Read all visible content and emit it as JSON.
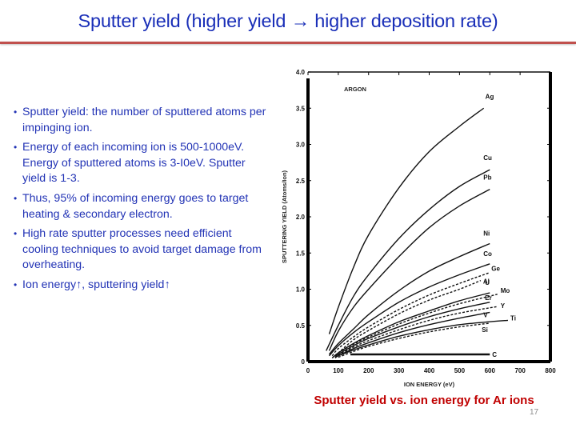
{
  "slide": {
    "title": "Sputter yield (higher yield → higher deposition rate)",
    "accent_color": "#c0504d",
    "title_color": "#1a2fb8",
    "page_number": "17"
  },
  "bullets": [
    {
      "text": "Sputter yield: the number of sputtered atoms per impinging ion."
    },
    {
      "text": "Energy of each incoming ion is 500-1000eV. Energy of sputtered atoms is 3-I0eV. Sputter yield is 1-3."
    },
    {
      "text": "Thus, 95% of incoming energy goes to target heating & secondary electron."
    },
    {
      "text": "High rate sputter processes need efficient cooling techniques to avoid target damage from overheating."
    },
    {
      "text": "Ion energy↑, sputtering yield↑"
    }
  ],
  "figure": {
    "caption": "Sputter yield vs. ion energy for Ar ions",
    "caption_color": "#c00000"
  },
  "chart_data": {
    "type": "line",
    "title": "ARGON",
    "xlabel": "ION ENERGY (eV)",
    "ylabel": "SPUTTERING YIELD (Atoms/Ion)",
    "xlim": [
      0,
      800
    ],
    "ylim": [
      0,
      4.0
    ],
    "xticks": [
      "0",
      "100",
      "200",
      "300",
      "400",
      "500",
      "600",
      "700",
      "800"
    ],
    "yticks": [
      "0",
      "0.5",
      "1.0",
      "1.5",
      "2.0",
      "2.5",
      "3.0",
      "3.5",
      "4.0"
    ],
    "grid": false,
    "legend": "inline labels at curve ends",
    "series": [
      {
        "name": "Ag",
        "style": "solid",
        "x": [
          70,
          100,
          150,
          200,
          300,
          400,
          500,
          580
        ],
        "y": [
          0.38,
          0.75,
          1.3,
          1.75,
          2.4,
          2.9,
          3.25,
          3.5
        ]
      },
      {
        "name": "Cu",
        "style": "solid",
        "x": [
          60,
          100,
          150,
          200,
          300,
          400,
          500,
          600
        ],
        "y": [
          0.15,
          0.5,
          0.9,
          1.2,
          1.7,
          2.1,
          2.42,
          2.65
        ]
      },
      {
        "name": "Pb",
        "style": "solid",
        "x": [
          70,
          100,
          150,
          200,
          300,
          400,
          500,
          600
        ],
        "y": [
          0.15,
          0.42,
          0.75,
          1.0,
          1.45,
          1.85,
          2.15,
          2.38
        ]
      },
      {
        "name": "Ni",
        "style": "solid",
        "x": [
          70,
          100,
          150,
          200,
          300,
          400,
          500,
          600
        ],
        "y": [
          0.1,
          0.25,
          0.45,
          0.65,
          0.98,
          1.25,
          1.45,
          1.63
        ]
      },
      {
        "name": "Co",
        "style": "solid",
        "x": [
          70,
          100,
          150,
          200,
          300,
          400,
          500,
          600
        ],
        "y": [
          0.08,
          0.22,
          0.4,
          0.55,
          0.82,
          1.03,
          1.2,
          1.35
        ]
      },
      {
        "name": "Ge",
        "style": "dashed",
        "x": [
          80,
          100,
          150,
          200,
          300,
          400,
          500,
          600
        ],
        "y": [
          0.08,
          0.18,
          0.34,
          0.48,
          0.72,
          0.92,
          1.08,
          1.23
        ]
      },
      {
        "name": "Al",
        "style": "dashed",
        "x": [
          90,
          100,
          150,
          200,
          300,
          400,
          500,
          570
        ],
        "y": [
          0.08,
          0.12,
          0.3,
          0.43,
          0.66,
          0.85,
          1.0,
          1.12
        ]
      },
      {
        "name": "U",
        "style": "solid",
        "x": [
          80,
          100,
          150,
          200,
          300,
          400,
          500,
          600
        ],
        "y": [
          0.05,
          0.12,
          0.25,
          0.36,
          0.55,
          0.7,
          0.84,
          0.95
        ]
      },
      {
        "name": "Mo",
        "style": "dashed",
        "x": [
          80,
          100,
          150,
          200,
          300,
          400,
          500,
          625
        ],
        "y": [
          0.05,
          0.12,
          0.24,
          0.34,
          0.52,
          0.67,
          0.8,
          0.93
        ]
      },
      {
        "name": "Er",
        "style": "solid",
        "x": [
          90,
          100,
          150,
          200,
          300,
          400,
          500,
          600
        ],
        "y": [
          0.06,
          0.1,
          0.22,
          0.32,
          0.48,
          0.62,
          0.73,
          0.82
        ]
      },
      {
        "name": "Y",
        "style": "dashed",
        "x": [
          90,
          100,
          150,
          200,
          300,
          400,
          500,
          625
        ],
        "y": [
          0.05,
          0.09,
          0.2,
          0.29,
          0.44,
          0.57,
          0.67,
          0.76
        ]
      },
      {
        "name": "V",
        "style": "solid",
        "x": [
          90,
          100,
          150,
          200,
          300,
          400,
          500,
          600
        ],
        "y": [
          0.05,
          0.08,
          0.18,
          0.26,
          0.4,
          0.51,
          0.6,
          0.68
        ]
      },
      {
        "name": "Ti",
        "style": "solid",
        "x": [
          100,
          150,
          200,
          300,
          400,
          500,
          600,
          660
        ],
        "y": [
          0.08,
          0.16,
          0.23,
          0.35,
          0.44,
          0.51,
          0.55,
          0.57
        ]
      },
      {
        "name": "Si",
        "style": "dashed",
        "x": [
          100,
          150,
          200,
          300,
          400,
          500,
          600
        ],
        "y": [
          0.06,
          0.14,
          0.21,
          0.32,
          0.41,
          0.48,
          0.53
        ]
      },
      {
        "name": "C",
        "style": "solid",
        "x": [
          140,
          600
        ],
        "y": [
          0.1,
          0.1
        ]
      }
    ]
  }
}
